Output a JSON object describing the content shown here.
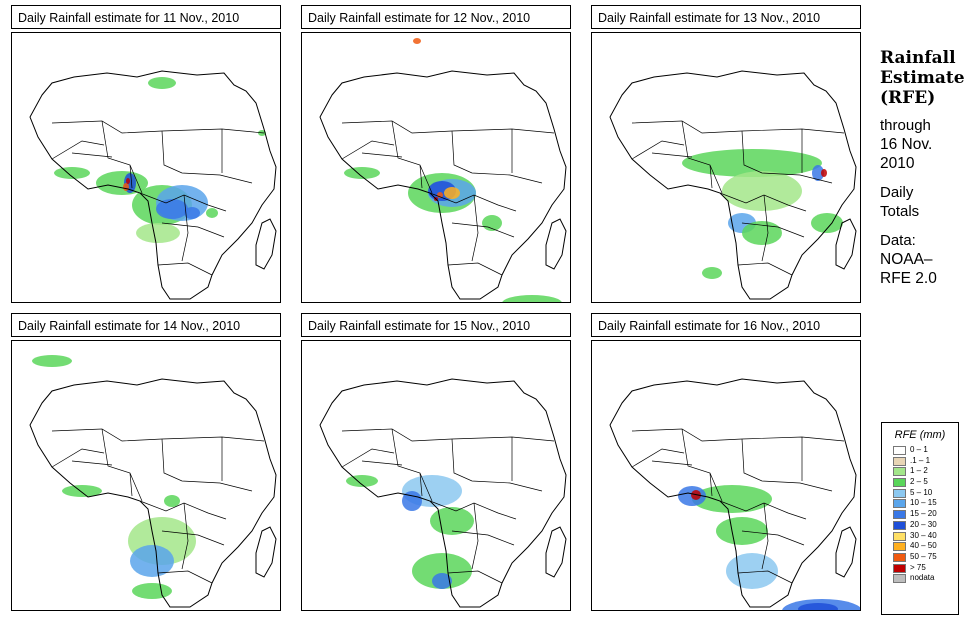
{
  "panels": [
    {
      "title": "Daily Rainfall estimate for  11 Nov., 2010",
      "day": 11
    },
    {
      "title": "Daily Rainfall estimate for  12 Nov., 2010",
      "day": 12
    },
    {
      "title": "Daily Rainfall estimate for  13 Nov., 2010",
      "day": 13
    },
    {
      "title": "Daily Rainfall estimate for  14 Nov., 2010",
      "day": 14
    },
    {
      "title": "Daily Rainfall estimate for  15 Nov., 2010",
      "day": 15
    },
    {
      "title": "Daily Rainfall estimate for  16 Nov., 2010",
      "day": 16
    }
  ],
  "sidebar": {
    "title_line1": "Rainfall",
    "title_line2": "Estimate",
    "title_line3": "(RFE)",
    "through": "through",
    "date_line1": "16 Nov.",
    "date_line2": "2010",
    "totals_line1": "Daily",
    "totals_line2": "Totals",
    "data_line1": "Data:",
    "data_line2": "NOAA–",
    "data_line3": "RFE 2.0"
  },
  "legend": {
    "title": "RFE (mm)",
    "items": [
      {
        "label": "0 – 1",
        "color": "#ffffff"
      },
      {
        "label": ".1 – 1",
        "color": "#e8d5b5"
      },
      {
        "label": "1 – 2",
        "color": "#a3e68a"
      },
      {
        "label": "2 – 5",
        "color": "#5ad65a"
      },
      {
        "label": "5 – 10",
        "color": "#8cc8f0"
      },
      {
        "label": "10 – 15",
        "color": "#5aa5eb"
      },
      {
        "label": "15 – 20",
        "color": "#3a78e6"
      },
      {
        "label": "20 – 30",
        "color": "#1f4fd8"
      },
      {
        "label": "30 – 40",
        "color": "#ffe066"
      },
      {
        "label": "40 – 50",
        "color": "#ffb020"
      },
      {
        "label": "50 – 75",
        "color": "#f05a10"
      },
      {
        "label": "> 75",
        "color": "#c00000"
      },
      {
        "label": "nodata",
        "color": "#bdbdbd"
      }
    ]
  }
}
